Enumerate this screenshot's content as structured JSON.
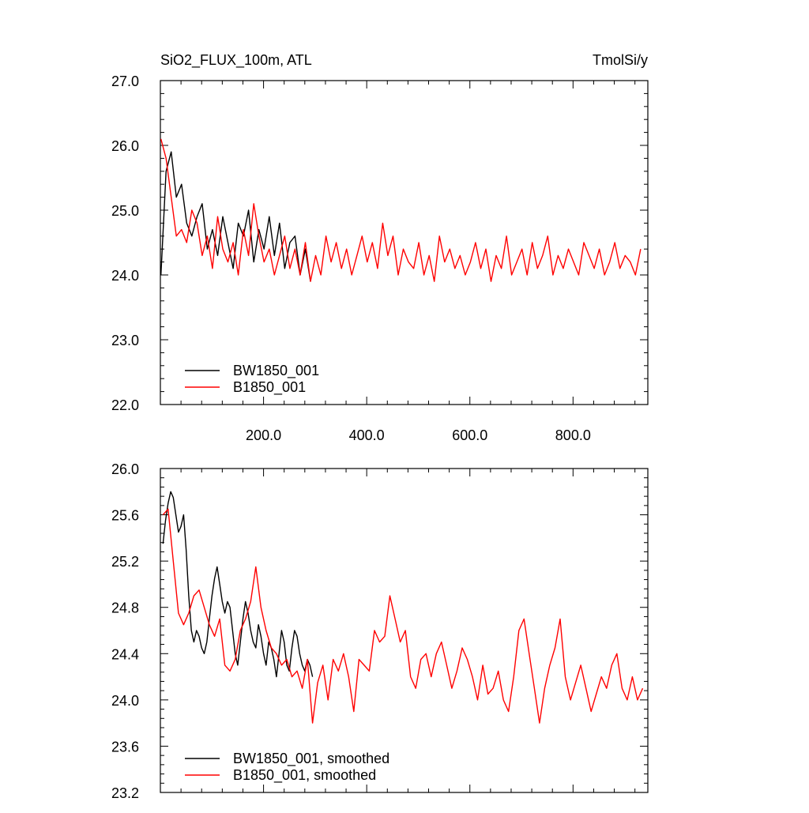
{
  "colors": {
    "series_black": "#000000",
    "series_red": "#ff0000",
    "axis": "#000000"
  },
  "chart_data": [
    {
      "type": "line",
      "title_left": "SiO2_FLUX_100m, ATL",
      "title_right": "TmolSi/y",
      "xlim": [
        0,
        945
      ],
      "ylim": [
        22.0,
        27.0
      ],
      "x_ticks": [
        200,
        400,
        600,
        800
      ],
      "x_tick_labels": [
        "200.0",
        "400.0",
        "600.0",
        "800.0"
      ],
      "y_ticks": [
        22,
        23,
        24,
        25,
        26,
        27
      ],
      "y_tick_labels": [
        "22.0",
        "23.0",
        "24.0",
        "25.0",
        "26.0",
        "27.0"
      ],
      "legend_position": "bottom-left",
      "series": [
        {
          "name": "BW1850_001",
          "color": "#000000",
          "x_start": 1,
          "x_step": 10,
          "values": [
            24.0,
            25.6,
            25.9,
            25.2,
            25.4,
            24.8,
            24.6,
            24.9,
            25.1,
            24.4,
            24.7,
            24.3,
            24.9,
            24.5,
            24.1,
            24.8,
            24.6,
            25.0,
            24.2,
            24.7,
            24.4,
            24.9,
            24.3,
            24.8,
            24.1,
            24.5,
            24.6,
            24.0,
            24.4,
            23.9
          ]
        },
        {
          "name": "B1850_001",
          "color": "#ff0000",
          "x_start": 1,
          "x_step": 10,
          "values": [
            26.1,
            25.8,
            25.2,
            24.6,
            24.7,
            24.5,
            25.0,
            24.8,
            24.3,
            24.6,
            24.1,
            24.9,
            24.4,
            24.2,
            24.5,
            24.0,
            24.7,
            24.3,
            25.1,
            24.6,
            24.2,
            24.4,
            24.0,
            24.3,
            24.6,
            24.1,
            24.4,
            24.0,
            24.5,
            23.9,
            24.3,
            24.0,
            24.6,
            24.2,
            24.5,
            24.1,
            24.4,
            24.0,
            24.3,
            24.6,
            24.2,
            24.5,
            24.1,
            24.8,
            24.3,
            24.6,
            24.0,
            24.4,
            24.2,
            24.1,
            24.5,
            24.0,
            24.3,
            23.9,
            24.6,
            24.2,
            24.4,
            24.1,
            24.3,
            24.0,
            24.2,
            24.5,
            24.1,
            24.4,
            23.9,
            24.3,
            24.1,
            24.6,
            24.0,
            24.2,
            24.4,
            24.0,
            24.5,
            24.1,
            24.3,
            24.6,
            24.0,
            24.3,
            24.1,
            24.4,
            24.2,
            24.0,
            24.5,
            24.3,
            24.1,
            24.4,
            24.0,
            24.2,
            24.5,
            24.1,
            24.3,
            24.2,
            24.0,
            24.4
          ]
        }
      ]
    },
    {
      "type": "line",
      "xlim": [
        0,
        945
      ],
      "ylim": [
        23.2,
        26.0
      ],
      "x_ticks": [
        200,
        400,
        600,
        800
      ],
      "y_ticks": [
        23.2,
        23.6,
        24.0,
        24.4,
        24.8,
        25.2,
        25.6,
        26.0
      ],
      "y_tick_labels": [
        "23.2",
        "23.6",
        "24.0",
        "24.4",
        "24.8",
        "25.2",
        "25.6",
        "26.0"
      ],
      "legend_position": "bottom-left",
      "series": [
        {
          "name": "BW1850_001, smoothed",
          "color": "#000000",
          "x": [
            5,
            10,
            15,
            20,
            25,
            30,
            35,
            40,
            45,
            50,
            55,
            60,
            65,
            70,
            75,
            80,
            85,
            90,
            95,
            100,
            105,
            110,
            115,
            120,
            125,
            130,
            135,
            140,
            145,
            150,
            155,
            160,
            165,
            170,
            175,
            180,
            185,
            190,
            195,
            200,
            205,
            210,
            215,
            220,
            225,
            230,
            235,
            240,
            245,
            250,
            255,
            260,
            265,
            270,
            275,
            280,
            285,
            290,
            295
          ],
          "y": [
            25.35,
            25.55,
            25.7,
            25.8,
            25.75,
            25.6,
            25.45,
            25.5,
            25.6,
            25.3,
            24.9,
            24.6,
            24.5,
            24.6,
            24.55,
            24.45,
            24.4,
            24.5,
            24.7,
            24.9,
            25.05,
            25.15,
            25.0,
            24.85,
            24.75,
            24.85,
            24.8,
            24.6,
            24.4,
            24.3,
            24.5,
            24.7,
            24.85,
            24.75,
            24.6,
            24.5,
            24.45,
            24.65,
            24.55,
            24.4,
            24.3,
            24.5,
            24.45,
            24.35,
            24.2,
            24.4,
            24.6,
            24.5,
            24.3,
            24.25,
            24.45,
            24.6,
            24.55,
            24.4,
            24.3,
            24.25,
            24.35,
            24.3,
            24.2
          ]
        },
        {
          "name": "B1850_001, smoothed",
          "color": "#ff0000",
          "x": [
            5,
            15,
            25,
            35,
            45,
            55,
            65,
            75,
            85,
            95,
            105,
            115,
            125,
            135,
            145,
            155,
            165,
            175,
            185,
            195,
            205,
            215,
            225,
            235,
            245,
            255,
            265,
            275,
            285,
            295,
            305,
            315,
            325,
            335,
            345,
            355,
            365,
            375,
            385,
            395,
            405,
            415,
            425,
            435,
            445,
            455,
            465,
            475,
            485,
            495,
            505,
            515,
            525,
            535,
            545,
            555,
            565,
            575,
            585,
            595,
            605,
            615,
            625,
            635,
            645,
            655,
            665,
            675,
            685,
            695,
            705,
            715,
            725,
            735,
            745,
            755,
            765,
            775,
            785,
            795,
            805,
            815,
            825,
            835,
            845,
            855,
            865,
            875,
            885,
            895,
            905,
            915,
            925,
            935
          ],
          "y": [
            25.6,
            25.65,
            25.2,
            24.75,
            24.65,
            24.75,
            24.9,
            24.95,
            24.8,
            24.65,
            24.55,
            24.7,
            24.3,
            24.25,
            24.35,
            24.6,
            24.7,
            24.85,
            25.15,
            24.8,
            24.6,
            24.45,
            24.4,
            24.3,
            24.35,
            24.2,
            24.25,
            24.1,
            24.35,
            23.8,
            24.15,
            24.3,
            24.0,
            24.35,
            24.25,
            24.4,
            24.2,
            23.9,
            24.35,
            24.3,
            24.25,
            24.6,
            24.5,
            24.55,
            24.9,
            24.7,
            24.5,
            24.6,
            24.2,
            24.1,
            24.35,
            24.4,
            24.2,
            24.4,
            24.5,
            24.3,
            24.1,
            24.25,
            24.45,
            24.35,
            24.2,
            24.0,
            24.3,
            24.05,
            24.1,
            24.25,
            24.0,
            23.9,
            24.2,
            24.6,
            24.7,
            24.4,
            24.1,
            23.8,
            24.1,
            24.3,
            24.45,
            24.7,
            24.2,
            24.0,
            24.15,
            24.3,
            24.1,
            23.9,
            24.05,
            24.2,
            24.1,
            24.3,
            24.4,
            24.1,
            24.0,
            24.2,
            24.0,
            24.1
          ]
        }
      ]
    }
  ]
}
